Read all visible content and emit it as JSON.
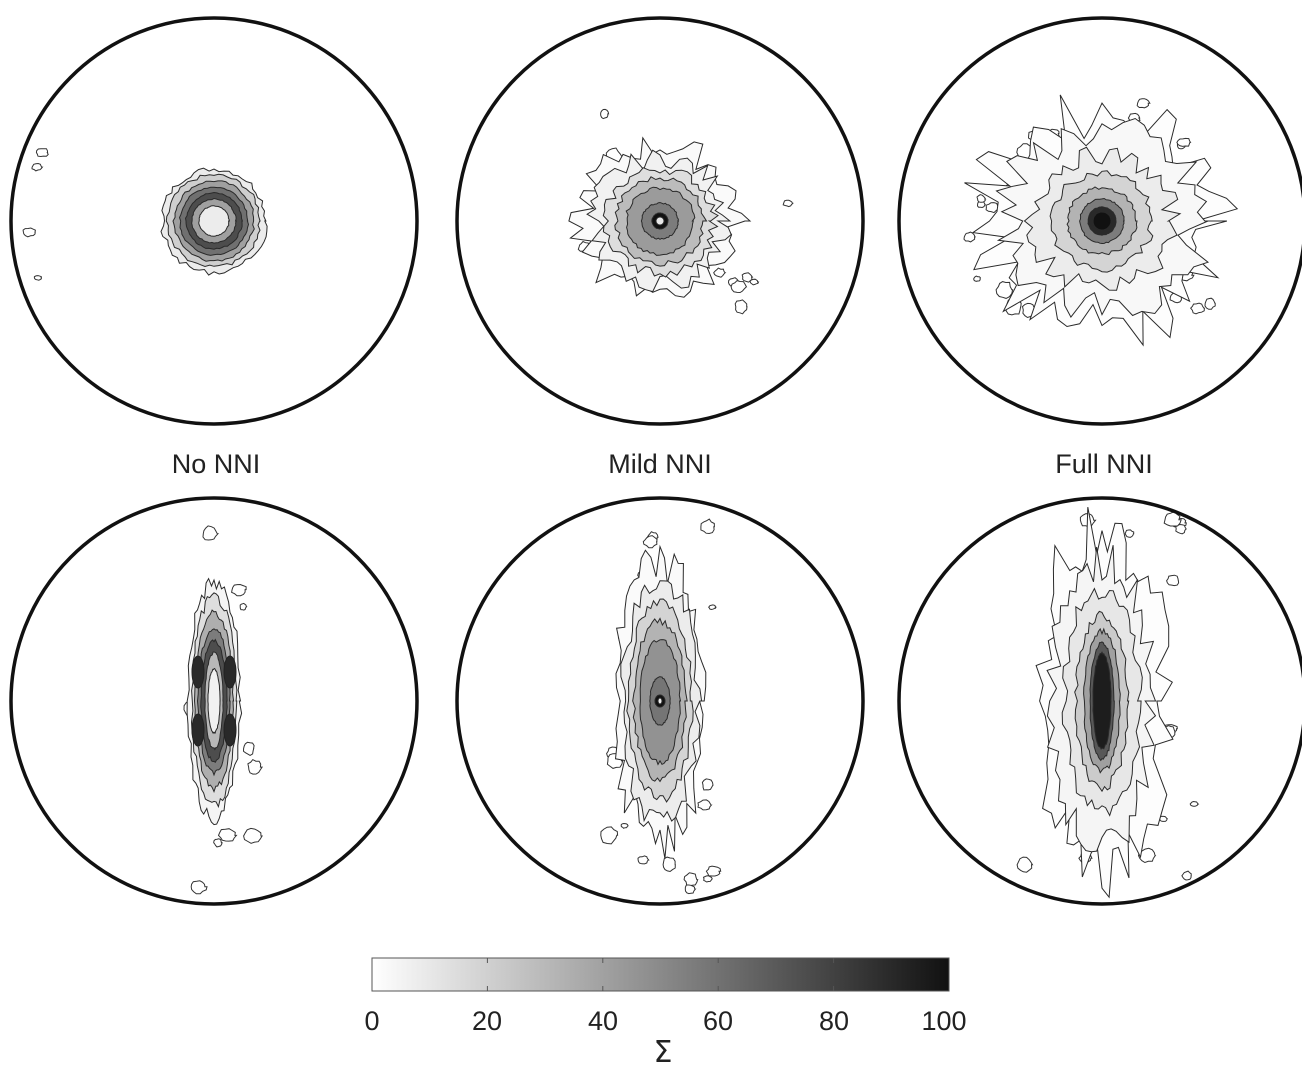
{
  "figure": {
    "panel_labels": [
      "No NNI",
      "Mild NNI",
      "Full NNI"
    ],
    "rows": 2,
    "columns": 3
  },
  "colorbar": {
    "label": "Σ",
    "min": 0,
    "max": 100,
    "ticks": [
      "0",
      "20",
      "40",
      "60",
      "80",
      "100"
    ],
    "colormap": [
      "#ffffff",
      "#111111"
    ]
  },
  "panels": [
    {
      "row": 0,
      "column": 0,
      "shape": "circular",
      "spread": "narrow",
      "peak_level": 80,
      "center_level": 5
    },
    {
      "row": 0,
      "column": 1,
      "shape": "circular",
      "spread": "medium",
      "peak_level": 100,
      "center_level": 100
    },
    {
      "row": 0,
      "column": 2,
      "shape": "circular",
      "spread": "wide",
      "peak_level": 100,
      "center_level": 100
    },
    {
      "row": 1,
      "column": 0,
      "shape": "vertical-elongated",
      "spread": "narrow",
      "peak_level": 90,
      "center_level": 5
    },
    {
      "row": 1,
      "column": 1,
      "shape": "vertical-elongated",
      "spread": "medium",
      "peak_level": 100,
      "center_level": 100
    },
    {
      "row": 1,
      "column": 2,
      "shape": "vertical-elongated",
      "spread": "wide",
      "peak_level": 100,
      "center_level": 100
    }
  ]
}
